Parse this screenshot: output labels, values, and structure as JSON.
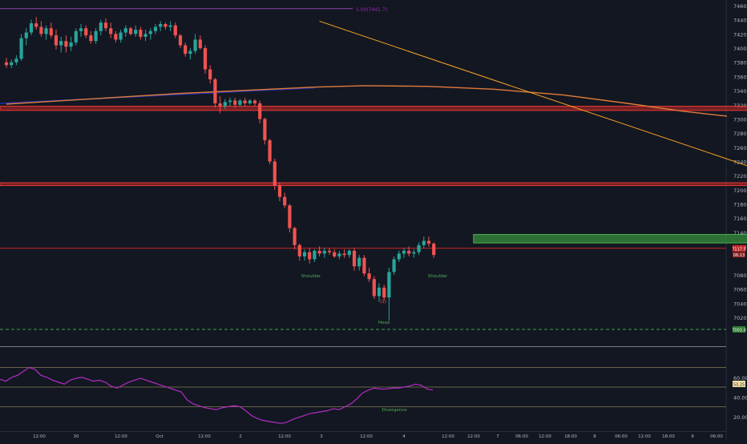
{
  "chart_data": [
    {
      "type": "candlestick",
      "title": "",
      "y_axis": {
        "min": 7000,
        "max": 7460,
        "ticks": [
          7460.0,
          7440.0,
          7420.0,
          7400.0,
          7380.0,
          7360.0,
          7340.0,
          7320.0,
          7300.0,
          7280.0,
          7260.0,
          7240.0,
          7220.0,
          7200.0,
          7180.0,
          7160.0,
          7140.0,
          7120.0,
          7080.0,
          7060.0,
          7040.0,
          7020.0
        ],
        "tick_labels": [
          "7460.0",
          "7440.0",
          "7420.0",
          "7400.0",
          "7380.0",
          "7360.0",
          "7340.0",
          "7320.0",
          "7300.0",
          "7280.0",
          "7260.0",
          "7240.0",
          "7220.0",
          "7200.0",
          "7180.0",
          "7160.0",
          "7140.0",
          "7120.0",
          "7080.0",
          "7060.0",
          "7040.0",
          "7020.0"
        ]
      },
      "x_axis_labels": [
        "12:00",
        "30",
        "12:00",
        "Oct",
        "12:00",
        "2",
        "12:00",
        "3",
        "12:00",
        "4",
        "12:00",
        "12:00",
        "7",
        "06:00",
        "12:00",
        "18:00",
        "8",
        "06:00",
        "12:00",
        "18:00",
        "9",
        "06:00"
      ],
      "candles_ohlc": [
        [
          7380,
          7386,
          7372,
          7376
        ],
        [
          7376,
          7384,
          7372,
          7380
        ],
        [
          7380,
          7390,
          7376,
          7385
        ],
        [
          7385,
          7420,
          7382,
          7414
        ],
        [
          7414,
          7428,
          7404,
          7422
        ],
        [
          7422,
          7440,
          7418,
          7435
        ],
        [
          7435,
          7444,
          7426,
          7430
        ],
        [
          7430,
          7438,
          7416,
          7420
        ],
        [
          7420,
          7432,
          7412,
          7428
        ],
        [
          7428,
          7436,
          7414,
          7418
        ],
        [
          7418,
          7426,
          7398,
          7404
        ],
        [
          7404,
          7416,
          7394,
          7410
        ],
        [
          7410,
          7418,
          7394,
          7402
        ],
        [
          7402,
          7416,
          7396,
          7408
        ],
        [
          7408,
          7428,
          7404,
          7424
        ],
        [
          7424,
          7434,
          7416,
          7428
        ],
        [
          7428,
          7432,
          7414,
          7418
        ],
        [
          7418,
          7424,
          7406,
          7410
        ],
        [
          7410,
          7428,
          7406,
          7424
        ],
        [
          7424,
          7440,
          7418,
          7436
        ],
        [
          7436,
          7442,
          7424,
          7428
        ],
        [
          7428,
          7436,
          7414,
          7420
        ],
        [
          7420,
          7424,
          7408,
          7412
        ],
        [
          7412,
          7426,
          7408,
          7422
        ],
        [
          7422,
          7432,
          7416,
          7428
        ],
        [
          7428,
          7430,
          7418,
          7420
        ],
        [
          7420,
          7432,
          7416,
          7426
        ],
        [
          7426,
          7430,
          7412,
          7416
        ],
        [
          7416,
          7426,
          7410,
          7420
        ],
        [
          7420,
          7428,
          7412,
          7424
        ],
        [
          7424,
          7434,
          7420,
          7430
        ],
        [
          7430,
          7438,
          7424,
          7434
        ],
        [
          7434,
          7436,
          7426,
          7430
        ],
        [
          7430,
          7438,
          7424,
          7432
        ],
        [
          7432,
          7436,
          7414,
          7418
        ],
        [
          7418,
          7420,
          7400,
          7404
        ],
        [
          7404,
          7408,
          7388,
          7392
        ],
        [
          7392,
          7400,
          7384,
          7396
        ],
        [
          7396,
          7420,
          7392,
          7412
        ],
        [
          7412,
          7418,
          7398,
          7400
        ],
        [
          7400,
          7404,
          7364,
          7370
        ],
        [
          7370,
          7376,
          7350,
          7356
        ],
        [
          7356,
          7358,
          7316,
          7322
        ],
        [
          7322,
          7332,
          7308,
          7318
        ],
        [
          7318,
          7328,
          7314,
          7324
        ],
        [
          7324,
          7330,
          7318,
          7326
        ],
        [
          7326,
          7330,
          7316,
          7320
        ],
        [
          7320,
          7328,
          7318,
          7326
        ],
        [
          7326,
          7330,
          7318,
          7322
        ],
        [
          7322,
          7328,
          7320,
          7326
        ],
        [
          7326,
          7328,
          7318,
          7322
        ],
        [
          7322,
          7326,
          7294,
          7300
        ],
        [
          7300,
          7302,
          7264,
          7270
        ],
        [
          7270,
          7272,
          7236,
          7240
        ],
        [
          7240,
          7244,
          7200,
          7206
        ],
        [
          7206,
          7210,
          7184,
          7190
        ],
        [
          7190,
          7196,
          7174,
          7178
        ],
        [
          7178,
          7180,
          7140,
          7146
        ],
        [
          7146,
          7148,
          7116,
          7122
        ],
        [
          7122,
          7124,
          7100,
          7106
        ],
        [
          7106,
          7116,
          7100,
          7112
        ],
        [
          7112,
          7118,
          7096,
          7102
        ],
        [
          7102,
          7116,
          7098,
          7114
        ],
        [
          7114,
          7120,
          7106,
          7110
        ],
        [
          7110,
          7118,
          7104,
          7114
        ],
        [
          7114,
          7118,
          7108,
          7112
        ],
        [
          7112,
          7116,
          7104,
          7106
        ],
        [
          7106,
          7114,
          7102,
          7110
        ],
        [
          7110,
          7116,
          7104,
          7108
        ],
        [
          7108,
          7116,
          7104,
          7114
        ],
        [
          7114,
          7118,
          7086,
          7092
        ],
        [
          7092,
          7108,
          7086,
          7104
        ],
        [
          7104,
          7108,
          7078,
          7082
        ],
        [
          7082,
          7090,
          7070,
          7074
        ],
        [
          7074,
          7078,
          7046,
          7050
        ],
        [
          7050,
          7068,
          7042,
          7062
        ],
        [
          7062,
          7066,
          7044,
          7048
        ],
        [
          7048,
          7090,
          7016,
          7084
        ],
        [
          7084,
          7106,
          7080,
          7102
        ],
        [
          7102,
          7114,
          7098,
          7110
        ],
        [
          7110,
          7118,
          7104,
          7114
        ],
        [
          7114,
          7120,
          7106,
          7110
        ],
        [
          7110,
          7116,
          7104,
          7112
        ],
        [
          7112,
          7126,
          7108,
          7122
        ],
        [
          7122,
          7134,
          7118,
          7128
        ],
        [
          7128,
          7134,
          7120,
          7124
        ],
        [
          7124,
          7126,
          7104,
          7108
        ]
      ],
      "ema": [
        [
          0,
          7321
        ],
        [
          35,
          7336
        ],
        [
          62,
          7345
        ],
        [
          72,
          7347
        ],
        [
          85,
          7346
        ],
        [
          98,
          7342
        ],
        [
          112,
          7334
        ],
        [
          125,
          7322
        ],
        [
          136,
          7311
        ],
        [
          145,
          7304
        ]
      ],
      "blue_line": [
        [
          0,
          7322
        ],
        [
          62,
          7344
        ]
      ],
      "trendline": [
        [
          63,
          7438
        ],
        [
          198,
          7118
        ]
      ],
      "resistance_zones": [
        {
          "from": 7312,
          "to": 7318,
          "x_start": 0,
          "x_end": 246
        },
        {
          "from": 7206,
          "to": 7210,
          "x_start": 0,
          "x_end": 213
        }
      ],
      "green_zone": {
        "from": 7125,
        "to": 7137,
        "x_start": 94,
        "x_end": 165
      },
      "support_line": 7117.5,
      "dashed_line": 7003.0,
      "last_price": "7117.5",
      "countdown": "06:13",
      "dashed_price_label": "7003.0",
      "fib_label": "1.00(7441.7)",
      "annotations": [
        "Shoulder",
        "Shoulder",
        "Head",
        "(1)"
      ]
    },
    {
      "type": "line",
      "title": "",
      "y_axis": {
        "min": 10,
        "max": 90,
        "ticks": [
          60,
          40,
          20
        ],
        "tick_labels": [
          "60.00",
          "40.00",
          "20.00"
        ]
      },
      "hlines": [
        70,
        50,
        30
      ],
      "rsi_value": "53.25",
      "values": [
        58,
        56,
        60,
        62,
        66,
        70,
        68,
        62,
        60,
        57,
        55,
        53,
        57,
        59,
        60,
        58,
        56,
        57,
        55,
        51,
        49,
        52,
        55,
        57,
        59,
        57,
        55,
        53,
        51,
        49,
        47,
        45,
        37,
        33,
        31,
        29,
        28,
        27,
        29,
        30,
        31,
        30,
        26,
        21,
        18,
        16,
        15,
        14,
        13,
        14,
        17,
        19,
        21,
        23,
        24,
        25,
        26,
        28,
        27,
        30,
        33,
        38,
        44,
        47,
        49,
        48,
        48,
        49,
        49,
        50,
        51,
        53,
        52,
        48,
        47
      ],
      "annotation": "Divergence"
    }
  ]
}
